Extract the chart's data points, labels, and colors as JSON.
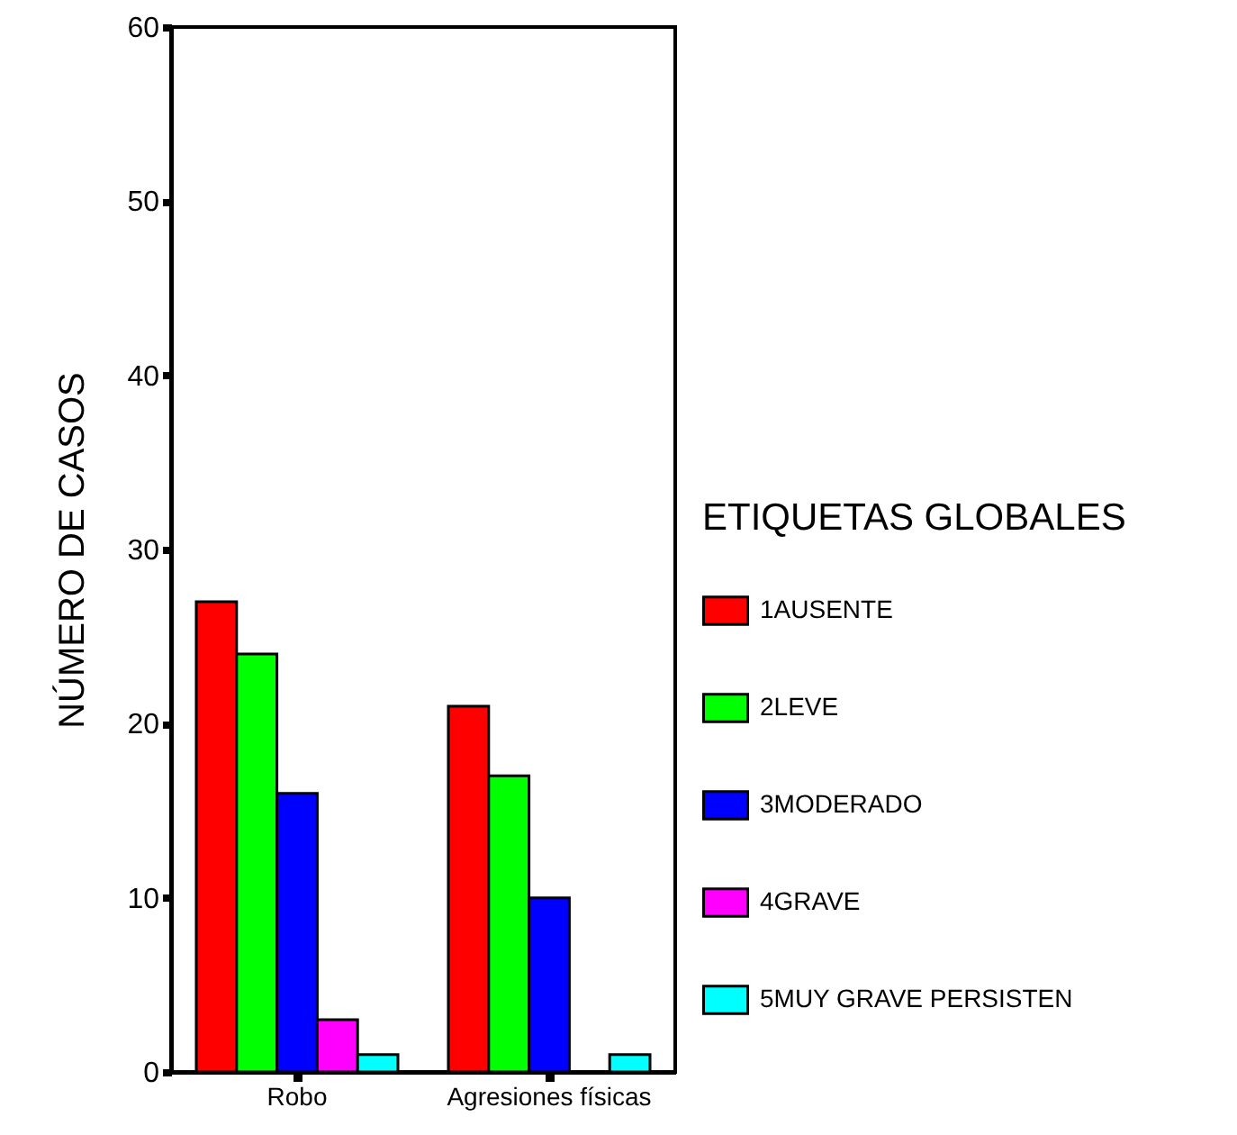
{
  "chart_data": {
    "type": "bar",
    "ylabel": "NÚMERO DE CASOS",
    "legend_title": "ETIQUETAS GLOBALES",
    "categories": [
      "Robo",
      "Agresiones físicas"
    ],
    "series": [
      {
        "name": "1AUSENTE",
        "color": "#ff0000",
        "values": [
          27,
          21
        ]
      },
      {
        "name": "2LEVE",
        "color": "#00ff00",
        "values": [
          24,
          17
        ]
      },
      {
        "name": "3MODERADO",
        "color": "#0000ff",
        "values": [
          16,
          10
        ]
      },
      {
        "name": "4GRAVE",
        "color": "#ff00ff",
        "values": [
          3,
          null
        ]
      },
      {
        "name": "5MUY GRAVE PERSISTEN",
        "color": "#00ffff",
        "values": [
          1,
          1
        ]
      }
    ],
    "ylim": [
      0,
      60
    ],
    "yticks": [
      0,
      10,
      20,
      30,
      40,
      50,
      60
    ],
    "legend": "right"
  }
}
